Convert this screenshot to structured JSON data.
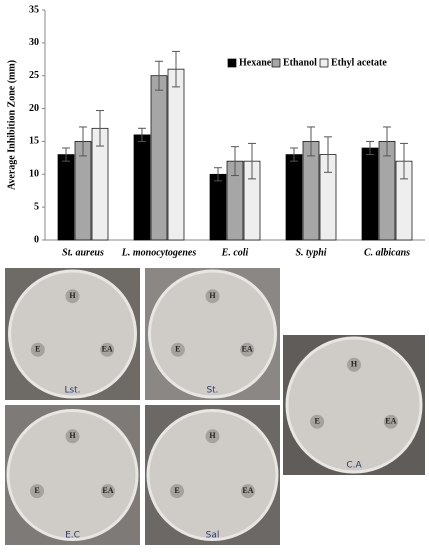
{
  "chart_data": {
    "type": "bar",
    "y_label": "Average Inhibition Zone (mm)",
    "categories": [
      "St. aureus",
      "L. monocytogenes",
      "E. coli",
      "S. typhi",
      "C. albicans"
    ],
    "series": [
      {
        "name": "Hexane",
        "color": "#000000",
        "values": [
          13,
          16,
          10,
          13,
          14
        ],
        "errors": [
          1,
          1,
          1,
          1,
          1
        ]
      },
      {
        "name": "Ethanol",
        "color": "#a6a6a6",
        "values": [
          15,
          25,
          12,
          15,
          15
        ],
        "errors": [
          2.2,
          2.2,
          2.2,
          2.2,
          2.2
        ]
      },
      {
        "name": "Ethyl acetate",
        "color": "#eeeeee",
        "values": [
          17,
          26,
          12,
          13,
          12
        ],
        "errors": [
          2.7,
          2.7,
          2.7,
          2.7,
          2.7
        ]
      }
    ],
    "ylim": [
      0,
      35
    ],
    "yticks": [
      0,
      5,
      10,
      15,
      20,
      25,
      30,
      35
    ],
    "grid": false,
    "legend": "top-right"
  },
  "plates": [
    {
      "label": "Lst.",
      "wells": [
        "H",
        "E",
        "EA"
      ]
    },
    {
      "label": "St.",
      "wells": [
        "H",
        "E",
        "EA"
      ]
    },
    {
      "label": "C.A",
      "wells": [
        "H",
        "E",
        "EA"
      ]
    },
    {
      "label": "E.C",
      "wells": [
        "H",
        "E",
        "EA"
      ]
    },
    {
      "label": "Sal",
      "wells": [
        "H",
        "E",
        "EA"
      ]
    }
  ]
}
